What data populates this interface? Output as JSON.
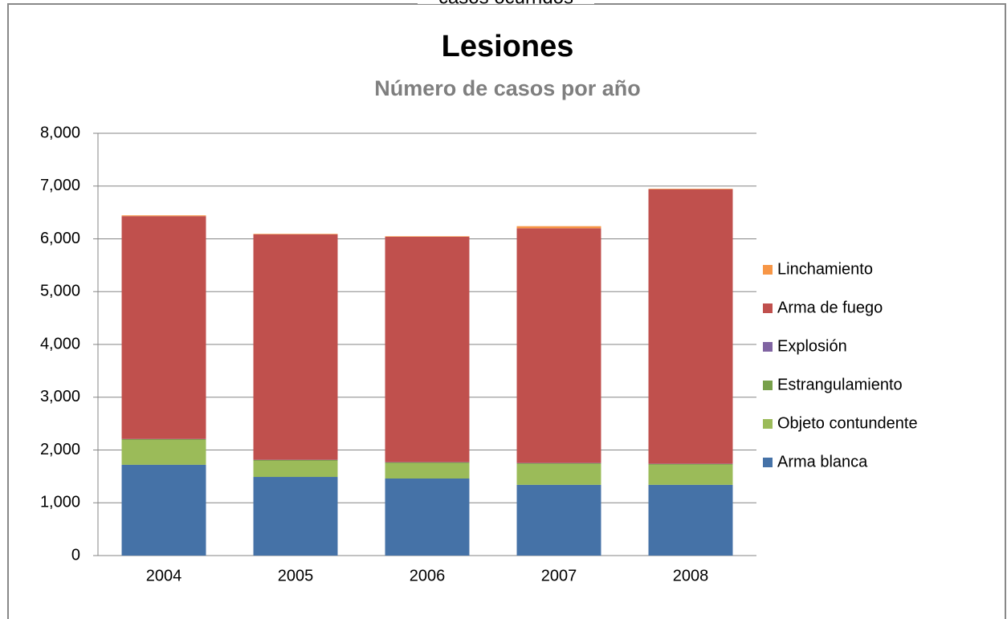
{
  "chart_data": {
    "type": "stacked_bar",
    "header_text": "casos ocurridos",
    "title": "Lesiones",
    "subtitle": "Número de casos por año",
    "categories": [
      "2004",
      "2005",
      "2006",
      "2007",
      "2008"
    ],
    "series": [
      {
        "name": "Arma blanca",
        "color": "#4572a7",
        "values": [
          1720,
          1490,
          1460,
          1340,
          1340
        ]
      },
      {
        "name": "Objeto contundente",
        "color": "#9bbb59",
        "values": [
          470,
          305,
          290,
          395,
          380
        ]
      },
      {
        "name": "Estrangulamiento",
        "color": "#77a04a",
        "values": [
          15,
          15,
          15,
          15,
          15
        ]
      },
      {
        "name": "Explosión",
        "color": "#8064a2",
        "values": [
          5,
          5,
          5,
          5,
          5
        ]
      },
      {
        "name": "Arma de fuego",
        "color": "#c0504d",
        "values": [
          4220,
          4270,
          4270,
          4445,
          5200
        ]
      },
      {
        "name": "Linchamiento",
        "color": "#f79646",
        "values": [
          15,
          10,
          10,
          40,
          10
        ]
      }
    ],
    "ylim": [
      0,
      8000
    ],
    "yticks": [
      0,
      {
        "value": 1000,
        "label": "1,000"
      },
      {
        "value": 2000,
        "label": "2,000"
      },
      {
        "value": 3000,
        "label": "3,000"
      },
      {
        "value": 4000,
        "label": "4,000"
      },
      {
        "value": 5000,
        "label": "5,000"
      },
      {
        "value": 6000,
        "label": "6,000"
      },
      {
        "value": 7000,
        "label": "7,000"
      },
      {
        "value": 8000,
        "label": "8,000"
      }
    ],
    "grid": true,
    "legend": "right"
  }
}
